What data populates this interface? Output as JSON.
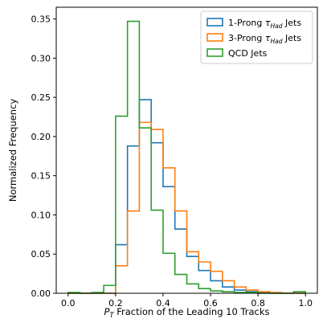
{
  "chart_data": {
    "type": "histogram-step",
    "xlabel": "P_T Fraction of the Leading 10 Tracks",
    "xlabel_parts": {
      "p": "P",
      "sub": "T",
      "rest": " Fraction of the Leading 10 Tracks"
    },
    "ylabel": "Normalized Frequency",
    "xlim": [
      -0.05,
      1.05
    ],
    "ylim": [
      0,
      0.365
    ],
    "bin_edges": [
      0.0,
      0.05,
      0.1,
      0.15,
      0.2,
      0.25,
      0.3,
      0.35,
      0.4,
      0.45,
      0.5,
      0.55,
      0.6,
      0.65,
      0.7,
      0.75,
      0.8,
      0.85,
      0.9,
      0.95,
      1.0
    ],
    "x_ticks": [
      "0.0",
      "0.2",
      "0.4",
      "0.6",
      "0.8",
      "1.0"
    ],
    "x_tick_values": [
      0.0,
      0.2,
      0.4,
      0.6,
      0.8,
      1.0
    ],
    "y_ticks": [
      "0.00",
      "0.05",
      "0.10",
      "0.15",
      "0.20",
      "0.25",
      "0.30",
      "0.35"
    ],
    "y_tick_values": [
      0.0,
      0.05,
      0.1,
      0.15,
      0.2,
      0.25,
      0.3,
      0.35
    ],
    "legend_position": "top-right",
    "series": [
      {
        "name": "1-Prong τHad Jets",
        "name_parts": {
          "pre": "1-Prong ",
          "tau": "τ",
          "sub": "Had",
          "post": " Jets"
        },
        "color": "#1f77b4",
        "values": [
          0.0,
          0.0,
          0.0,
          0.0,
          0.062,
          0.188,
          0.247,
          0.192,
          0.136,
          0.082,
          0.047,
          0.029,
          0.016,
          0.008,
          0.004,
          0.002,
          0.001,
          0.0,
          0.0,
          0.0
        ]
      },
      {
        "name": "3-Prong τHad Jets",
        "name_parts": {
          "pre": "3-Prong ",
          "tau": "τ",
          "sub": "Had",
          "post": " Jets"
        },
        "color": "#ff7f0e",
        "values": [
          0.0,
          0.0,
          0.0,
          0.0,
          0.035,
          0.105,
          0.218,
          0.209,
          0.16,
          0.105,
          0.053,
          0.04,
          0.028,
          0.016,
          0.008,
          0.004,
          0.002,
          0.001,
          0.0,
          0.0
        ]
      },
      {
        "name": "QCD Jets",
        "name_parts": {
          "pre": "QCD Jets",
          "tau": "",
          "sub": "",
          "post": ""
        },
        "color": "#2ca02c",
        "values": [
          0.001,
          0.0,
          0.001,
          0.01,
          0.226,
          0.347,
          0.211,
          0.106,
          0.051,
          0.024,
          0.012,
          0.006,
          0.003,
          0.002,
          0.001,
          0.001,
          0.0,
          0.0,
          0.0,
          0.002
        ]
      }
    ]
  }
}
